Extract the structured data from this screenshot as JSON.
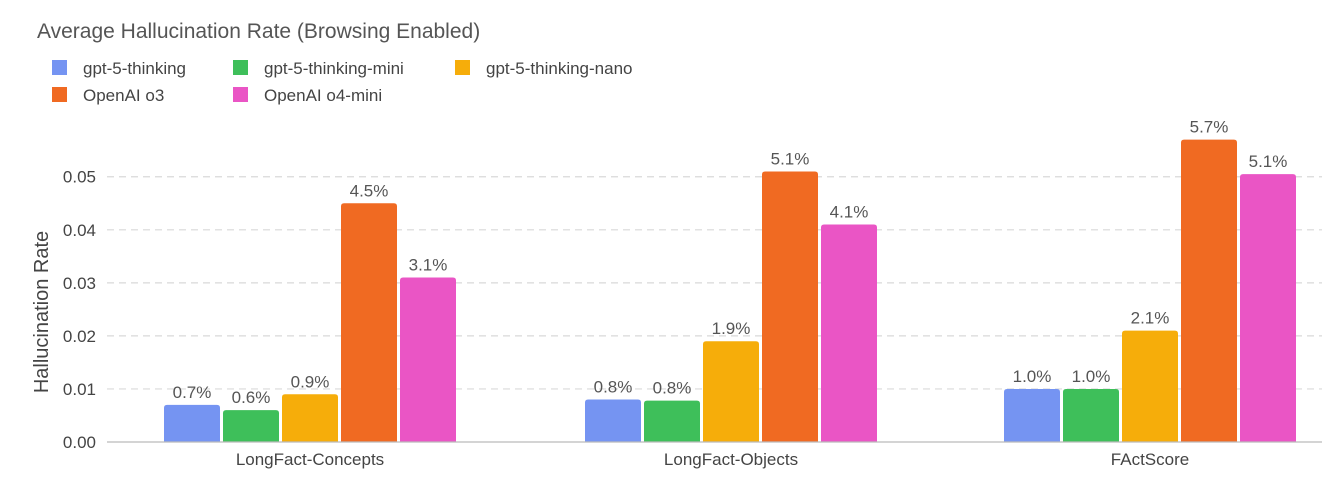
{
  "chart_data": {
    "type": "bar",
    "title": "Average Hallucination Rate (Browsing Enabled)",
    "xlabel": "",
    "ylabel": "Hallucination Rate",
    "ylim": [
      0,
      0.059
    ],
    "yticks": [
      "0.00",
      "0.01",
      "0.02",
      "0.03",
      "0.04",
      "0.05"
    ],
    "grid": true,
    "legend_position": "top-left",
    "categories": [
      "LongFact-Concepts",
      "LongFact-Objects",
      "FActScore"
    ],
    "series": [
      {
        "name": "gpt-5-thinking",
        "color": "#7594f2",
        "values": [
          0.007,
          0.008,
          0.01
        ],
        "labels": [
          "0.7%",
          "0.8%",
          "1.0%"
        ]
      },
      {
        "name": "gpt-5-thinking-mini",
        "color": "#3ebf5a",
        "values": [
          0.006,
          0.0078,
          0.01
        ],
        "labels": [
          "0.6%",
          "0.8%",
          "1.0%"
        ]
      },
      {
        "name": "gpt-5-thinking-nano",
        "color": "#f6ad0a",
        "values": [
          0.009,
          0.019,
          0.021
        ],
        "labels": [
          "0.9%",
          "1.9%",
          "2.1%"
        ]
      },
      {
        "name": "OpenAI o3",
        "color": "#f06a22",
        "values": [
          0.045,
          0.051,
          0.057
        ],
        "labels": [
          "4.5%",
          "5.1%",
          "5.7%"
        ]
      },
      {
        "name": "OpenAI o4-mini",
        "color": "#ea55c5",
        "values": [
          0.031,
          0.041,
          0.0505
        ],
        "labels": [
          "3.1%",
          "4.1%",
          "5.1%"
        ]
      }
    ]
  }
}
